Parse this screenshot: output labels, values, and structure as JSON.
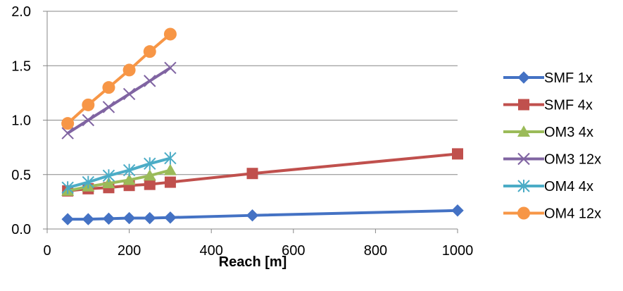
{
  "chart_data": {
    "type": "line",
    "title": "",
    "xlabel": "Reach [m]",
    "ylabel": "",
    "xlim": [
      0,
      1000
    ],
    "ylim": [
      0,
      2.0
    ],
    "xticks": [
      0,
      200,
      400,
      600,
      800,
      1000
    ],
    "yticks": [
      0.0,
      0.5,
      1.0,
      1.5,
      2.0
    ],
    "xtick_labels": [
      "0",
      "200",
      "400",
      "600",
      "800",
      "1000"
    ],
    "ytick_labels": [
      "0.0",
      "0.5",
      "1.0",
      "1.5",
      "2.0"
    ],
    "grid": "horizontal",
    "legend_position": "right",
    "series": [
      {
        "name": "SMF 1x",
        "color": "#4472C4",
        "marker": "diamond",
        "x": [
          50,
          100,
          150,
          200,
          250,
          300,
          500,
          1000
        ],
        "y": [
          0.09,
          0.09,
          0.095,
          0.1,
          0.1,
          0.105,
          0.125,
          0.17
        ]
      },
      {
        "name": "SMF 4x",
        "color": "#C0504D",
        "marker": "square",
        "x": [
          50,
          100,
          150,
          200,
          250,
          300,
          500,
          1000
        ],
        "y": [
          0.35,
          0.37,
          0.38,
          0.4,
          0.41,
          0.43,
          0.51,
          0.69
        ]
      },
      {
        "name": "OM3 4x",
        "color": "#9BBB59",
        "marker": "triangle",
        "x": [
          50,
          100,
          150,
          200,
          250,
          300
        ],
        "y": [
          0.35,
          0.39,
          0.42,
          0.45,
          0.49,
          0.54
        ]
      },
      {
        "name": "OM3 12x",
        "color": "#8064A2",
        "marker": "x",
        "x": [
          50,
          100,
          150,
          200,
          250,
          300
        ],
        "y": [
          0.88,
          1.0,
          1.12,
          1.24,
          1.36,
          1.48
        ]
      },
      {
        "name": "OM4 4x",
        "color": "#4BACC6",
        "marker": "star",
        "x": [
          50,
          100,
          150,
          200,
          250,
          300
        ],
        "y": [
          0.38,
          0.43,
          0.49,
          0.54,
          0.6,
          0.65
        ]
      },
      {
        "name": "OM4 12x",
        "color": "#F79646",
        "marker": "circle",
        "x": [
          50,
          100,
          150,
          200,
          250,
          300
        ],
        "y": [
          0.97,
          1.14,
          1.3,
          1.46,
          1.63,
          1.79
        ]
      }
    ]
  }
}
